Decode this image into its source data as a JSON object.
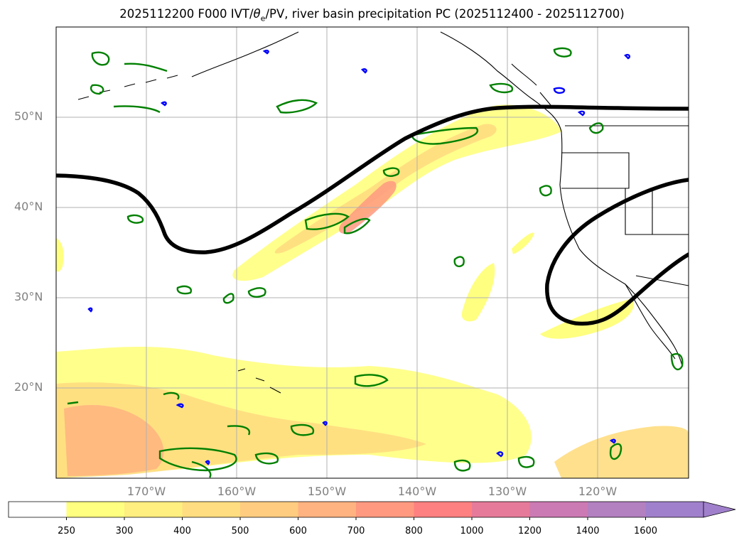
{
  "title": {
    "prefix": "2025112200 F000 IVT/",
    "theta": "θ",
    "theta_sub": "e",
    "suffix": "/PV, river basin precipitation PC (2025112400 - 2025112700)"
  },
  "map": {
    "projection": "equirectangular",
    "lon_range": [
      -180,
      -110
    ],
    "lat_range": [
      10,
      60
    ],
    "grid": true,
    "lat_labels": [
      {
        "lat": 50,
        "label": "50°N"
      },
      {
        "lat": 40,
        "label": "40°N"
      },
      {
        "lat": 30,
        "label": "30°N"
      },
      {
        "lat": 20,
        "label": "20°N"
      }
    ],
    "lon_labels": [
      {
        "lon": -170,
        "label": "170°W"
      },
      {
        "lon": -160,
        "label": "160°W"
      },
      {
        "lon": -150,
        "label": "150°W"
      },
      {
        "lon": -140,
        "label": "140°W"
      },
      {
        "lon": -130,
        "label": "130°W"
      },
      {
        "lon": -120,
        "label": "120°W"
      }
    ],
    "colors": {
      "coast": "#000000",
      "theta_e_contour": "#008000",
      "pv_contour": "#0000ff",
      "jet_contour": "#000000",
      "gridline": "#b0b0b0"
    }
  },
  "colorbar": {
    "levels": [
      250,
      300,
      400,
      500,
      600,
      700,
      800,
      1000,
      1200,
      1400,
      1600
    ],
    "tick_labels": [
      "250",
      "300",
      "400",
      "500",
      "600",
      "700",
      "800",
      "1000",
      "1200",
      "1400",
      "1600"
    ],
    "colors": [
      "#ffffff",
      "#ffff80",
      "#ffee80",
      "#ffdd80",
      "#ffcc80",
      "#ffb380",
      "#ff9980",
      "#ff8080",
      "#e67a9a",
      "#cc7ab3",
      "#b380c0",
      "#a080cc"
    ],
    "extend": "max"
  }
}
